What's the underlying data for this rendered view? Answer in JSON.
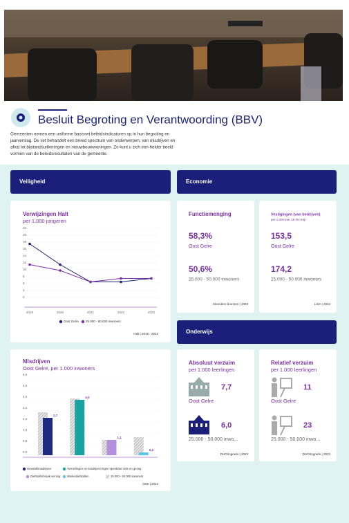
{
  "header": {
    "title": "Besluit Begroting en Verantwoording (BBV)",
    "description": [
      "Gemeenten nemen een uniforme basisset beleidsindicatoren op in hun begroting en",
      "jaarverslag. De set behandelt een breed spectrum van onderwerpen, van misdrijven en",
      "afval tot bijstandsuitkeringen en nieuwbouwwoningen. Zo kunt u zich een helder beeld",
      "vormen van de beleidsresultaten van de gemeente."
    ]
  },
  "sections": [
    "Veiligheid",
    "Economie",
    "Onderwijs"
  ],
  "chart_data": [
    {
      "type": "line",
      "title": "Verwijzingen Halt",
      "subtitle": "per 1.000 jongeren",
      "x": [
        2019,
        2020,
        2021,
        2022,
        2023
      ],
      "xlim": [
        2019,
        2023
      ],
      "ylim": [
        0,
        22
      ],
      "yticks": [
        2,
        4,
        6,
        8,
        10,
        12,
        14,
        16,
        18,
        20,
        22
      ],
      "series": [
        {
          "name": "Oost Gelre",
          "color": "#1b1f7a",
          "values": [
            17.5,
            11.5,
            6.5,
            6.5,
            7.5
          ]
        },
        {
          "name": "25.000 - 50.000 inwoners",
          "color": "#7b2fa8",
          "values": [
            11.5,
            9.8,
            6.5,
            7.5,
            7.5
          ]
        }
      ],
      "source": "Halt | 2019 - 2023"
    },
    {
      "type": "bar",
      "title": "Misdrijven",
      "subtitle": "Oost Gelre, per 1.000 inwoners",
      "categories": [
        "Geweldsmisdrijven",
        "Vernielingen en misdrijven tegen openbare orde en gezag",
        "Diefstal/inbraak woning",
        "Winkeldiefstallen"
      ],
      "category_colors": [
        "#1f2a80",
        "#1aa2a2",
        "#b490dc",
        "#5ec6e4"
      ],
      "ylim": [
        0,
        5.6
      ],
      "yticks": [
        {
          "value": 0,
          "label": "0,0"
        },
        {
          "value": 0.8,
          "label": "0,8"
        },
        {
          "value": 1.6,
          "label": "1,6"
        },
        {
          "value": 2.4,
          "label": "2,4"
        },
        {
          "value": 3.2,
          "label": "3,2"
        },
        {
          "value": 4,
          "label": "4,0"
        },
        {
          "value": 4.8,
          "label": "4,8"
        },
        {
          "value": 5.6,
          "label": "5,6"
        }
      ],
      "series": [
        {
          "values": [
            2.7,
            4.0,
            1.1,
            0.2
          ],
          "value_labels": [
            "2,7",
            "4,0",
            "1,1",
            "0,2"
          ]
        },
        {
          "name": "25.000 - 50.000 inwoners",
          "color": "#cfcfcf",
          "values": [
            3.1,
            4.1,
            1.1,
            1.3
          ]
        }
      ],
      "source": "CBS | 2024"
    }
  ],
  "kpis": [
    {
      "title": "Functiemenging",
      "values": [
        58.3,
        50.6
      ],
      "value_labels": [
        "58,3%",
        "50,6%"
      ],
      "labels": [
        "Oost Gelre",
        "25.000 - 50.000 inwoners"
      ],
      "source": "Meerdere bronnen | 2023"
    },
    {
      "title": "Vestigingen (van bedrijven)",
      "subtitle": "per 1.000 inw. 15 t/m 64jr",
      "values": [
        153.5,
        174.2
      ],
      "value_labels": [
        "153,5",
        "174,2"
      ],
      "labels": [
        "Oost Gelre",
        "25.000 - 50.000 inwoners"
      ],
      "source": "LISA | 2023"
    },
    {
      "title": "Absoluut verzuim",
      "subtitle": "per 1.000 leerlingen",
      "values": [
        7.7,
        6.0
      ],
      "value_labels": [
        "7,7",
        "6,0"
      ],
      "labels": [
        "Oost Gelre",
        "25.000 - 50.000 inwo..."
      ],
      "source": "DUO/Ingrado | 2023"
    },
    {
      "title": "Relatief verzuim",
      "subtitle": "per 1.000 leerlingen",
      "values": [
        11,
        23
      ],
      "labels": [
        "Oost Gelre",
        "25.000 - 50.000 inwo..."
      ],
      "source": "DUO/Ingrado | 2023"
    }
  ]
}
